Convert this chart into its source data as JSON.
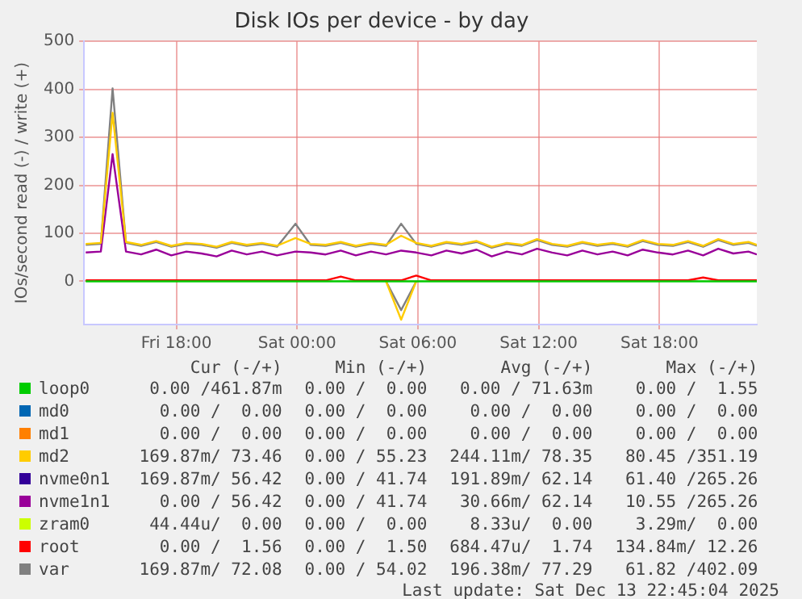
{
  "chart_data": {
    "type": "line",
    "title": "Disk IOs per device - by day",
    "ylabel": "IOs/second read (-) / write (+)",
    "x": [
      "2025-12-12T13:30",
      "2025-12-12T14:15",
      "2025-12-12T14:50",
      "2025-12-12T15:30",
      "2025-12-12T16:15",
      "2025-12-12T17:00",
      "2025-12-12T17:45",
      "2025-12-12T18:30",
      "2025-12-12T19:15",
      "2025-12-12T20:00",
      "2025-12-12T20:45",
      "2025-12-12T21:30",
      "2025-12-12T22:15",
      "2025-12-12T23:00",
      "2025-12-12T23:55",
      "2025-12-13T00:40",
      "2025-12-13T01:25",
      "2025-12-13T02:10",
      "2025-12-13T02:55",
      "2025-12-13T03:40",
      "2025-12-13T04:25",
      "2025-12-13T05:10",
      "2025-12-13T05:55",
      "2025-12-13T06:40",
      "2025-12-13T07:25",
      "2025-12-13T08:10",
      "2025-12-13T08:55",
      "2025-12-13T09:40",
      "2025-12-13T10:25",
      "2025-12-13T11:10",
      "2025-12-13T11:55",
      "2025-12-13T12:40",
      "2025-12-13T13:25",
      "2025-12-13T14:10",
      "2025-12-13T14:55",
      "2025-12-13T15:40",
      "2025-12-13T16:25",
      "2025-12-13T17:10",
      "2025-12-13T17:55",
      "2025-12-13T18:40",
      "2025-12-13T19:25",
      "2025-12-13T20:10",
      "2025-12-13T20:55",
      "2025-12-13T21:40",
      "2025-12-13T22:25",
      "2025-12-13T22:50"
    ],
    "series": [
      {
        "name": "loop0",
        "color": "#00cc00",
        "values": [
          0,
          0,
          0,
          0,
          0,
          0,
          0,
          0,
          0,
          0,
          0,
          0,
          0,
          0,
          0,
          0,
          0,
          0,
          0,
          0,
          0,
          0,
          0,
          0,
          0,
          0,
          0,
          0,
          0,
          0,
          0,
          0,
          0,
          0,
          0,
          0,
          0,
          0,
          0,
          0,
          0,
          0,
          0,
          0,
          0,
          0
        ]
      },
      {
        "name": "md0",
        "color": "#0066b3",
        "values": [
          null,
          null,
          null,
          null,
          null,
          null,
          null,
          null,
          null,
          null,
          null,
          null,
          null,
          null,
          null,
          null,
          null,
          null,
          null,
          null,
          null,
          null,
          null,
          null,
          null,
          null,
          null,
          null,
          null,
          null,
          null,
          null,
          null,
          null,
          null,
          null,
          null,
          null,
          null,
          null,
          null,
          null,
          null,
          null,
          null,
          null
        ]
      },
      {
        "name": "md1",
        "color": "#ff8000",
        "values": [
          null,
          null,
          null,
          null,
          null,
          null,
          null,
          null,
          null,
          null,
          null,
          null,
          null,
          null,
          null,
          null,
          null,
          null,
          null,
          null,
          null,
          null,
          null,
          null,
          null,
          null,
          null,
          null,
          null,
          null,
          null,
          null,
          null,
          null,
          null,
          null,
          null,
          null,
          null,
          null,
          null,
          null,
          null,
          null,
          null,
          null
        ]
      },
      {
        "name": "md2",
        "color": "#ffcc00",
        "values": [
          78,
          80,
          351,
          82,
          76,
          84,
          74,
          80,
          78,
          72,
          82,
          76,
          80,
          74,
          90,
          78,
          76,
          82,
          74,
          80,
          76,
          95,
          80,
          74,
          82,
          78,
          84,
          72,
          80,
          76,
          88,
          78,
          74,
          82,
          76,
          80,
          74,
          86,
          78,
          76,
          84,
          74,
          88,
          78,
          82,
          76
        ]
      },
      {
        "name": "nvme0n1",
        "color": "#330099",
        "values": [
          null,
          null,
          null,
          null,
          null,
          null,
          null,
          null,
          null,
          null,
          null,
          null,
          null,
          null,
          null,
          null,
          null,
          null,
          null,
          null,
          null,
          null,
          null,
          null,
          null,
          null,
          null,
          null,
          null,
          null,
          null,
          null,
          null,
          null,
          null,
          null,
          null,
          null,
          null,
          null,
          null,
          null,
          null,
          null,
          null,
          null
        ]
      },
      {
        "name": "nvme1n1",
        "color": "#990099",
        "values": [
          60,
          62,
          265,
          62,
          56,
          66,
          54,
          62,
          58,
          52,
          64,
          56,
          62,
          54,
          62,
          60,
          56,
          64,
          54,
          62,
          56,
          64,
          60,
          54,
          64,
          58,
          66,
          52,
          62,
          56,
          68,
          60,
          54,
          64,
          56,
          62,
          54,
          66,
          60,
          56,
          64,
          54,
          68,
          58,
          62,
          56
        ]
      },
      {
        "name": "zram0",
        "color": "#ccff00",
        "values": [
          null,
          null,
          null,
          null,
          null,
          null,
          null,
          null,
          null,
          null,
          null,
          null,
          null,
          null,
          null,
          null,
          null,
          null,
          null,
          null,
          null,
          null,
          null,
          null,
          null,
          null,
          null,
          null,
          null,
          null,
          null,
          null,
          null,
          null,
          null,
          null,
          null,
          null,
          null,
          null,
          null,
          null,
          null,
          null,
          null,
          null
        ]
      },
      {
        "name": "root",
        "color": "#ff0000",
        "values": [
          2,
          2,
          2,
          2,
          2,
          2,
          2,
          2,
          2,
          2,
          2,
          2,
          2,
          2,
          2,
          2,
          2,
          10,
          2,
          2,
          2,
          2,
          12,
          2,
          2,
          2,
          2,
          2,
          2,
          2,
          2,
          2,
          2,
          2,
          2,
          2,
          2,
          2,
          2,
          2,
          2,
          8,
          2,
          2,
          2,
          2
        ]
      },
      {
        "name": "var",
        "color": "#808080",
        "values": [
          76,
          78,
          402,
          80,
          74,
          82,
          72,
          78,
          76,
          70,
          80,
          74,
          78,
          72,
          120,
          76,
          74,
          80,
          72,
          78,
          74,
          120,
          78,
          72,
          80,
          76,
          82,
          70,
          78,
          74,
          86,
          76,
          72,
          80,
          74,
          78,
          72,
          84,
          76,
          74,
          82,
          72,
          86,
          76,
          80,
          74
        ]
      },
      {
        "color": "#ffcc00",
        "values": [
          null,
          null,
          null,
          null,
          null,
          null,
          null,
          null,
          null,
          null,
          null,
          null,
          null,
          null,
          null,
          null,
          null,
          null,
          null,
          null,
          0,
          -80,
          0,
          null,
          null,
          null,
          null,
          null,
          null,
          null,
          null,
          null,
          null,
          null,
          null,
          null,
          null,
          null,
          null,
          null,
          null,
          null,
          null,
          null,
          null,
          null
        ]
      },
      {
        "color": "#808080",
        "values": [
          null,
          null,
          null,
          null,
          null,
          null,
          null,
          null,
          null,
          null,
          null,
          null,
          null,
          null,
          null,
          null,
          null,
          null,
          null,
          null,
          0,
          -60,
          0,
          null,
          null,
          null,
          null,
          null,
          null,
          null,
          null,
          null,
          null,
          null,
          null,
          null,
          null,
          null,
          null,
          null,
          null,
          null,
          null,
          null,
          null,
          null
        ]
      }
    ],
    "xlim": [
      "2025-12-12T13:25",
      "2025-12-13T22:50"
    ],
    "xticks": [
      {
        "value": "2025-12-12T18:00",
        "label": "Fri 18:00"
      },
      {
        "value": "2025-12-13T00:00",
        "label": "Sat 00:00"
      },
      {
        "value": "2025-12-13T06:00",
        "label": "Sat 06:00"
      },
      {
        "value": "2025-12-13T12:00",
        "label": "Sat 12:00"
      },
      {
        "value": "2025-12-13T18:00",
        "label": "Sat 18:00"
      }
    ],
    "ylim": [
      -90,
      500
    ],
    "yticks": [
      0,
      100,
      200,
      300,
      400,
      500
    ],
    "grid": true,
    "legend": "bottom",
    "marker": "none",
    "line_style": "solid",
    "annotations": [
      "Cur (-/+)",
      "Min (-/+)",
      "Avg (-/+)",
      "Max (-/+)",
      "0.00 /461.87m",
      "0.00 /  0.00",
      "0.00 / 71.63m",
      "0.00 /  1.55",
      "0.00 /  0.00",
      "0.00 /  0.00",
      "0.00 /  0.00",
      "0.00 /  0.00",
      "0.00 /  0.00",
      "0.00 /  0.00",
      "0.00 /  0.00",
      "0.00 /  0.00",
      "169.87m/ 73.46",
      "0.00 / 55.23",
      "244.11m/ 78.35",
      "80.45 /351.19",
      "169.87m/ 56.42",
      "0.00 / 41.74",
      "191.89m/ 62.14",
      "61.40 /265.26",
      "0.00 / 56.42",
      "0.00 / 41.74",
      "30.66m/ 62.14",
      "10.55 /265.26",
      "44.44u/  0.00",
      "0.00 /  0.00",
      "8.33u/  0.00",
      "3.29m/  0.00",
      "0.00 /  1.56",
      "0.00 /  1.50",
      "684.47u/  1.74",
      "134.84m/ 12.26",
      "169.87m/ 72.08",
      "0.00 / 54.02",
      "196.38m/ 77.29",
      "61.82 /402.09",
      "Last update: Sat Dec 13 22:45:04 2025"
    ]
  }
}
